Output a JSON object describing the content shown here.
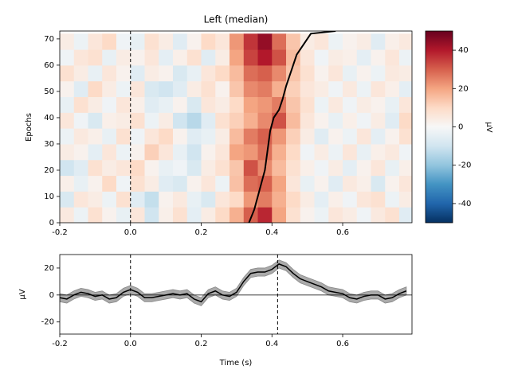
{
  "chart_data": [
    {
      "type": "heatmap",
      "title": "Left (median)",
      "ylabel": "Epochs",
      "x": [
        -0.18,
        -0.14,
        -0.1,
        -0.06,
        -0.02,
        0.02,
        0.06,
        0.1,
        0.14,
        0.18,
        0.22,
        0.26,
        0.3,
        0.34,
        0.38,
        0.42,
        0.46,
        0.5,
        0.54,
        0.58,
        0.62,
        0.66,
        0.7,
        0.74,
        0.78
      ],
      "y": [
        3,
        9,
        15,
        21,
        27,
        33,
        39,
        45,
        51,
        57,
        63,
        69
      ],
      "values": [
        [
          5,
          -3,
          8,
          2,
          -4,
          6,
          -10,
          3,
          8,
          -5,
          4,
          10,
          18,
          30,
          38,
          20,
          8,
          2,
          -3,
          6,
          4,
          -2,
          5,
          8,
          -6
        ],
        [
          -8,
          6,
          4,
          -3,
          8,
          -6,
          -12,
          2,
          5,
          -4,
          -8,
          6,
          10,
          22,
          26,
          18,
          10,
          4,
          -5,
          3,
          -2,
          6,
          8,
          -3,
          4
        ],
        [
          3,
          -4,
          2,
          10,
          -2,
          8,
          4,
          -6,
          -8,
          2,
          6,
          -3,
          15,
          28,
          30,
          20,
          6,
          -4,
          2,
          -6,
          5,
          3,
          -8,
          2,
          6
        ],
        [
          -10,
          -6,
          8,
          4,
          6,
          10,
          2,
          -4,
          -2,
          -8,
          4,
          8,
          14,
          32,
          24,
          16,
          8,
          3,
          -2,
          4,
          -5,
          2,
          6,
          -4,
          3
        ],
        [
          4,
          2,
          -5,
          6,
          -3,
          2,
          12,
          6,
          -4,
          -10,
          2,
          6,
          20,
          22,
          28,
          18,
          10,
          -2,
          4,
          -3,
          6,
          -4,
          3,
          5,
          -2
        ],
        [
          -3,
          5,
          3,
          -4,
          8,
          -2,
          6,
          10,
          2,
          -6,
          -4,
          4,
          16,
          26,
          30,
          22,
          12,
          4,
          -6,
          2,
          -3,
          6,
          -5,
          2,
          8
        ],
        [
          6,
          -2,
          -8,
          3,
          4,
          8,
          -3,
          4,
          -10,
          -14,
          -6,
          8,
          12,
          18,
          24,
          32,
          16,
          6,
          2,
          -4,
          3,
          -2,
          4,
          -6,
          10
        ],
        [
          -4,
          8,
          4,
          -2,
          6,
          3,
          -6,
          -4,
          2,
          -8,
          6,
          4,
          10,
          20,
          22,
          26,
          14,
          8,
          -3,
          5,
          -2,
          4,
          2,
          -4,
          6
        ],
        [
          2,
          -6,
          10,
          4,
          -3,
          6,
          -8,
          -10,
          -6,
          4,
          8,
          2,
          14,
          24,
          26,
          18,
          12,
          6,
          4,
          -2,
          5,
          -3,
          6,
          3,
          -5
        ],
        [
          8,
          4,
          -4,
          6,
          2,
          -6,
          4,
          2,
          -8,
          -4,
          6,
          10,
          16,
          28,
          30,
          24,
          14,
          8,
          2,
          6,
          -4,
          2,
          -3,
          5,
          4
        ],
        [
          -2,
          6,
          8,
          -4,
          4,
          2,
          6,
          -5,
          3,
          8,
          -6,
          4,
          20,
          34,
          40,
          32,
          16,
          6,
          -2,
          4,
          3,
          -5,
          2,
          6,
          -3
        ],
        [
          4,
          -3,
          6,
          10,
          -2,
          -4,
          8,
          4,
          -6,
          2,
          10,
          6,
          22,
          36,
          44,
          28,
          14,
          4,
          6,
          -3,
          2,
          4,
          -6,
          3,
          5
        ]
      ],
      "sort_line": {
        "x": [
          0.335,
          0.35,
          0.36,
          0.37,
          0.38,
          0.385,
          0.39,
          0.395,
          0.405,
          0.42,
          0.43,
          0.44,
          0.455,
          0.47,
          0.485,
          0.5,
          0.51,
          0.58
        ],
        "y": [
          0,
          5,
          10,
          15,
          20,
          25,
          30,
          35,
          40,
          43,
          47,
          52,
          58,
          64,
          67,
          70,
          72,
          73
        ]
      },
      "vline": 0,
      "xlim": [
        -0.2,
        0.796
      ],
      "ylim": [
        0,
        73
      ],
      "xticks": [
        -0.2,
        {
          "value": 0,
          "label": "0.0"
        },
        0.2,
        0.4,
        0.6
      ],
      "yticks": [
        0,
        10,
        20,
        30,
        40,
        50,
        60,
        70
      ],
      "clim": [
        -50,
        50
      ],
      "cticks": [
        -40,
        -20,
        0,
        20,
        40
      ],
      "clabel": "µV",
      "colormap": [
        "#053061",
        "#2166ac",
        "#4393c3",
        "#92c5de",
        "#d1e5f0",
        "#f7f7f7",
        "#fddbc7",
        "#f4a582",
        "#d6604d",
        "#b2182b",
        "#67001f"
      ]
    },
    {
      "type": "line",
      "xlabel": "Time (s)",
      "ylabel": "µV",
      "x": [
        -0.2,
        -0.18,
        -0.16,
        -0.14,
        -0.12,
        -0.1,
        -0.08,
        -0.06,
        -0.04,
        -0.02,
        0,
        0.02,
        0.04,
        0.06,
        0.08,
        0.1,
        0.12,
        0.14,
        0.16,
        0.18,
        0.2,
        0.22,
        0.24,
        0.26,
        0.28,
        0.3,
        0.32,
        0.34,
        0.36,
        0.38,
        0.4,
        0.42,
        0.44,
        0.46,
        0.48,
        0.5,
        0.52,
        0.54,
        0.56,
        0.58,
        0.6,
        0.62,
        0.64,
        0.66,
        0.68,
        0.7,
        0.72,
        0.74,
        0.76,
        0.78
      ],
      "values": [
        -2,
        -3,
        0,
        2,
        1,
        -1,
        0,
        -3,
        -2,
        2,
        4,
        2,
        -2,
        -2,
        -1,
        0,
        1,
        0,
        1,
        -3,
        -5,
        1,
        3,
        0,
        -1,
        2,
        10,
        16,
        17,
        17,
        19,
        23,
        21,
        16,
        12,
        10,
        8,
        6,
        3,
        2,
        1,
        -2,
        -3,
        -1,
        0,
        0,
        -3,
        -2,
        1,
        3
      ],
      "error": 3,
      "color": "#000000",
      "band_color": "#aaaaaa",
      "vlines": [
        0,
        0.416
      ],
      "xlim": [
        -0.2,
        0.796
      ],
      "ylim": [
        -29,
        30
      ],
      "xticks": [
        -0.2,
        {
          "value": 0,
          "label": "0.0"
        },
        0.2,
        0.4,
        0.6
      ],
      "yticks": [
        -20,
        0,
        20
      ]
    }
  ]
}
